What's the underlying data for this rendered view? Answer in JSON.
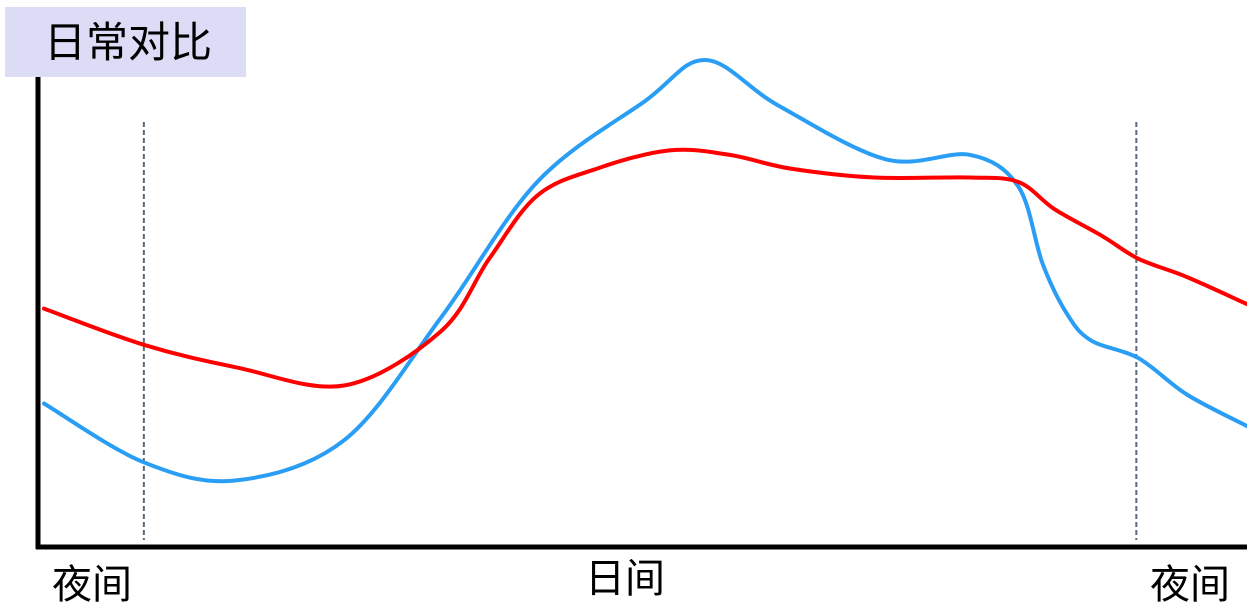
{
  "chart_data": {
    "type": "line",
    "title": "日常对比",
    "x_labels": [
      "夜间",
      "日间",
      "夜间"
    ],
    "x_range": [
      0,
      100
    ],
    "y_range": [
      0,
      100
    ],
    "grid": false,
    "vertical_markers": [
      8.3,
      90.8
    ],
    "series": [
      {
        "color": "#2a9df4",
        "x": [
          0,
          8.3,
          16,
          25,
          33,
          41,
          50,
          55,
          61,
          70,
          77,
          81,
          83,
          85,
          87,
          91,
          95,
          100
        ],
        "y": [
          24,
          11,
          7,
          16,
          43,
          73,
          91,
          100,
          90,
          78,
          79,
          72,
          55,
          44,
          38,
          34,
          26,
          19
        ]
      },
      {
        "color": "#ff0000",
        "x": [
          0,
          8.3,
          16,
          25,
          33,
          37,
          41,
          46,
          52,
          57,
          62,
          69,
          77,
          81,
          84,
          88,
          91,
          95,
          100
        ],
        "y": [
          45,
          37,
          32,
          28,
          40,
          56,
          70,
          76,
          80,
          79,
          76,
          74,
          74,
          73,
          67,
          61,
          56,
          52,
          46
        ]
      }
    ]
  }
}
